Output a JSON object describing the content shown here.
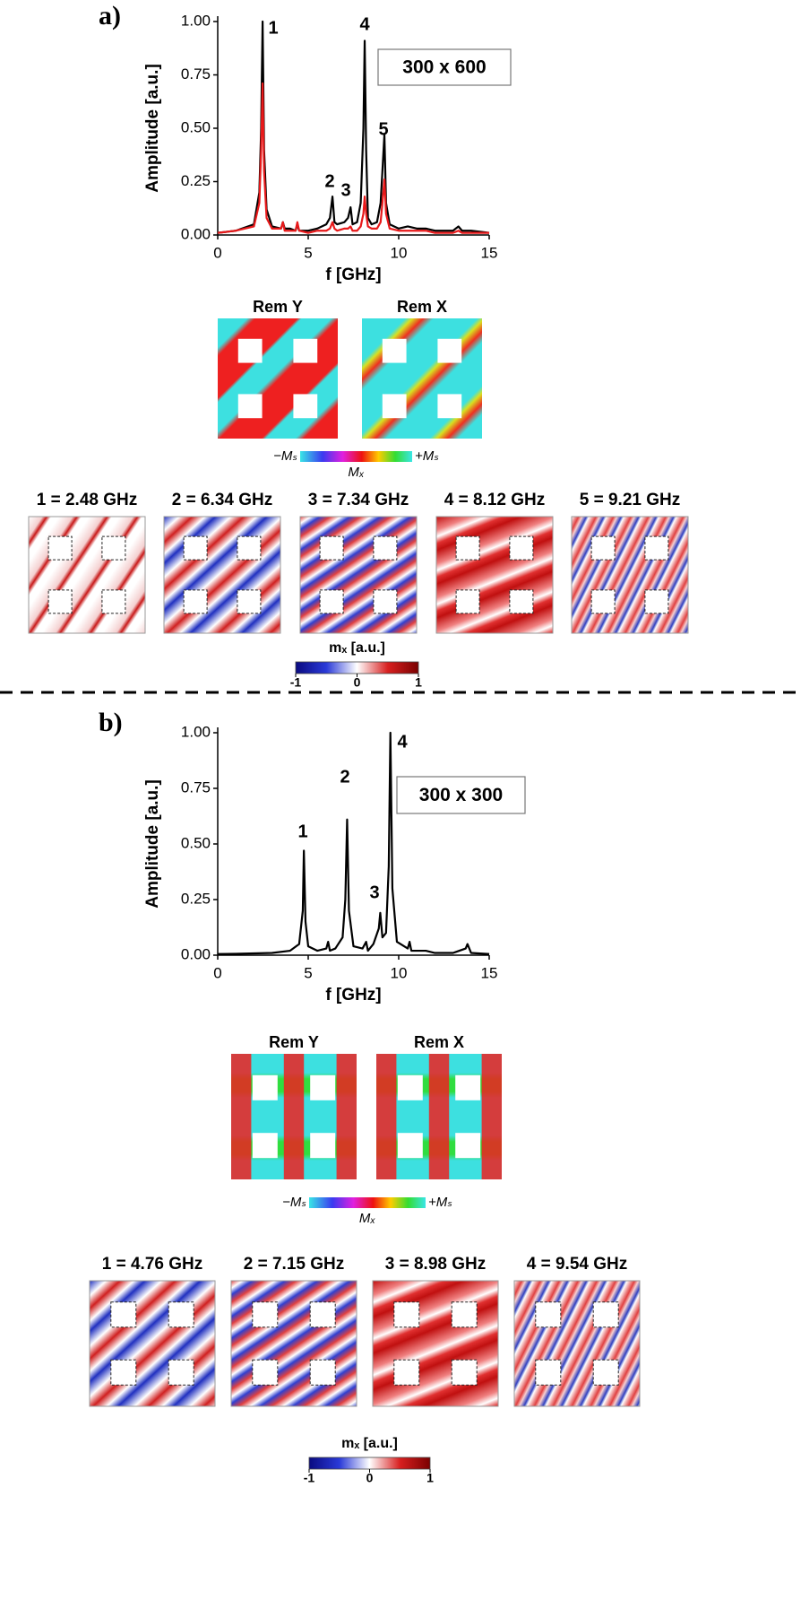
{
  "chart_data": [
    {
      "type": "line",
      "xlabel": "f [GHz]",
      "ylabel": "Amplitude [a.u.]",
      "label": "300 x 600",
      "annotations": [
        "1",
        "2",
        "3",
        "4",
        "5"
      ],
      "x": [
        0,
        1,
        2,
        2.3,
        2.4,
        2.48,
        2.56,
        2.7,
        3,
        3.5,
        3.6,
        3.7,
        4,
        4.3,
        4.4,
        4.5,
        5,
        5.5,
        6,
        6.2,
        6.34,
        6.45,
        6.6,
        7,
        7.2,
        7.34,
        7.45,
        7.7,
        7.9,
        8.05,
        8.12,
        8.2,
        8.3,
        8.5,
        8.8,
        9.0,
        9.1,
        9.21,
        9.3,
        9.5,
        10,
        10.5,
        11,
        11.5,
        12,
        13,
        13.3,
        13.5,
        14,
        15
      ],
      "series": [
        {
          "color": "#000000",
          "values": [
            0.01,
            0.02,
            0.05,
            0.2,
            0.5,
            1.0,
            0.4,
            0.12,
            0.04,
            0.03,
            0.06,
            0.03,
            0.03,
            0.02,
            0.05,
            0.02,
            0.02,
            0.03,
            0.05,
            0.08,
            0.18,
            0.06,
            0.05,
            0.06,
            0.08,
            0.13,
            0.05,
            0.06,
            0.15,
            0.5,
            0.91,
            0.4,
            0.08,
            0.05,
            0.06,
            0.15,
            0.3,
            0.47,
            0.15,
            0.05,
            0.03,
            0.04,
            0.03,
            0.03,
            0.02,
            0.02,
            0.04,
            0.02,
            0.02,
            0.01
          ]
        },
        {
          "color": "#e8191a",
          "values": [
            0.01,
            0.02,
            0.04,
            0.15,
            0.4,
            0.71,
            0.3,
            0.08,
            0.03,
            0.03,
            0.06,
            0.02,
            0.02,
            0.02,
            0.06,
            0.02,
            0.01,
            0.02,
            0.02,
            0.03,
            0.06,
            0.03,
            0.02,
            0.03,
            0.03,
            0.04,
            0.02,
            0.02,
            0.04,
            0.1,
            0.18,
            0.1,
            0.04,
            0.03,
            0.03,
            0.06,
            0.15,
            0.26,
            0.1,
            0.03,
            0.02,
            0.02,
            0.02,
            0.02,
            0.01,
            0.01,
            0.02,
            0.01,
            0.01,
            0.01
          ]
        }
      ],
      "xlim": [
        0,
        15
      ],
      "xticks": [
        0,
        5,
        10,
        15
      ],
      "ylim": [
        0,
        1
      ],
      "yticks": [
        {
          "value": 0,
          "label": "0.00"
        },
        {
          "value": 0.25,
          "label": "0.25"
        },
        {
          "value": 0.5,
          "label": "0.50"
        },
        {
          "value": 0.75,
          "label": "0.75"
        },
        {
          "value": 1,
          "label": "1.00"
        }
      ]
    },
    {
      "type": "line",
      "xlabel": "f [GHz]",
      "ylabel": "Amplitude [a.u.]",
      "label": "300 x 300",
      "annotations": [
        "1",
        "2",
        "3",
        "4"
      ],
      "x": [
        0,
        1,
        2,
        3,
        4,
        4.5,
        4.7,
        4.76,
        4.85,
        5,
        5.5,
        6,
        6.1,
        6.2,
        6.5,
        6.9,
        7.05,
        7.15,
        7.25,
        7.5,
        8,
        8.2,
        8.3,
        8.6,
        8.9,
        8.98,
        9.1,
        9.3,
        9.45,
        9.54,
        9.65,
        9.9,
        10.5,
        10.6,
        10.7,
        11,
        11.5,
        12,
        13,
        13.7,
        13.8,
        14,
        15
      ],
      "series": [
        {
          "color": "#000000",
          "values": [
            0.005,
            0.006,
            0.008,
            0.01,
            0.02,
            0.05,
            0.2,
            0.47,
            0.15,
            0.04,
            0.02,
            0.03,
            0.06,
            0.02,
            0.03,
            0.08,
            0.25,
            0.61,
            0.2,
            0.04,
            0.03,
            0.06,
            0.02,
            0.05,
            0.12,
            0.19,
            0.08,
            0.1,
            0.4,
            1.0,
            0.3,
            0.06,
            0.03,
            0.06,
            0.02,
            0.02,
            0.02,
            0.01,
            0.01,
            0.03,
            0.05,
            0.01,
            0.005
          ]
        }
      ],
      "xlim": [
        0,
        15
      ],
      "xticks": [
        0,
        5,
        10,
        15
      ],
      "ylim": [
        0,
        1
      ],
      "yticks": [
        {
          "value": 0,
          "label": "0.00"
        },
        {
          "value": 0.25,
          "label": "0.25"
        },
        {
          "value": 0.5,
          "label": "0.50"
        },
        {
          "value": 0.75,
          "label": "0.75"
        },
        {
          "value": 1,
          "label": "1.00"
        }
      ]
    }
  ],
  "panels": [
    {
      "label": "a)",
      "rem_titles": [
        "Rem Y",
        "Rem X"
      ],
      "rem_colorbar": {
        "min": "−Mₛ",
        "max": "+Mₛ",
        "title": "Mₓ"
      },
      "modes": [
        "1 = 2.48 GHz",
        "2 = 6.34 GHz",
        "3 = 7.34 GHz",
        "4 = 8.12 GHz",
        "5 = 9.21 GHz"
      ],
      "mode_colorbar": {
        "title": "mₓ [a.u.]",
        "ticks": [
          -1,
          0,
          1
        ]
      }
    },
    {
      "label": "b)",
      "rem_titles": [
        "Rem Y",
        "Rem X"
      ],
      "rem_colorbar": {
        "min": "−Mₛ",
        "max": "+Mₛ",
        "title": "Mₓ"
      },
      "modes": [
        "1 = 4.76 GHz",
        "2 = 7.15 GHz",
        "3 = 8.98 GHz",
        "4 = 9.54 GHz"
      ],
      "mode_colorbar": {
        "title": "mₓ [a.u.]",
        "ticks": [
          -1,
          0,
          1
        ]
      }
    }
  ]
}
